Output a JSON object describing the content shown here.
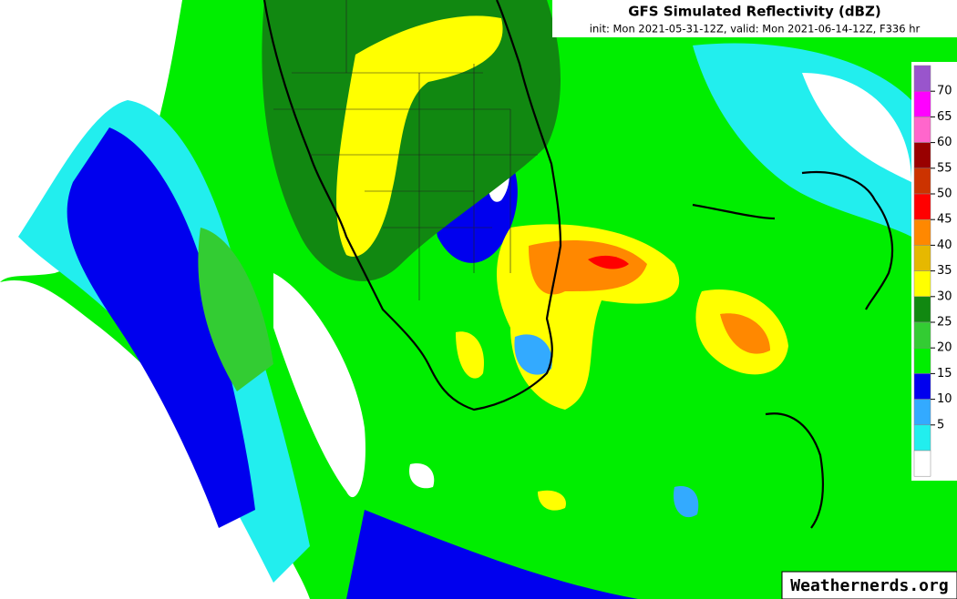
{
  "header": {
    "title": "GFS Simulated Reflectivity (dBZ)",
    "subtitle": "init: Mon 2021-05-31-12Z, valid: Mon 2021-06-14-12Z, F336 hr"
  },
  "legend": {
    "ticks": [
      70,
      65,
      60,
      55,
      50,
      45,
      40,
      35,
      30,
      25,
      20,
      15,
      10,
      5
    ],
    "colors": [
      "#9955cc",
      "#ff00ff",
      "#ff66cc",
      "#990000",
      "#cc3300",
      "#ff0000",
      "#ff8800",
      "#e6b800",
      "#ffff00",
      "#118811",
      "#33cc33",
      "#00ee00",
      "#0000ee",
      "#33aaff",
      "#22eeee",
      "#ffffff"
    ]
  },
  "watermark": "Weathernerds.org"
}
